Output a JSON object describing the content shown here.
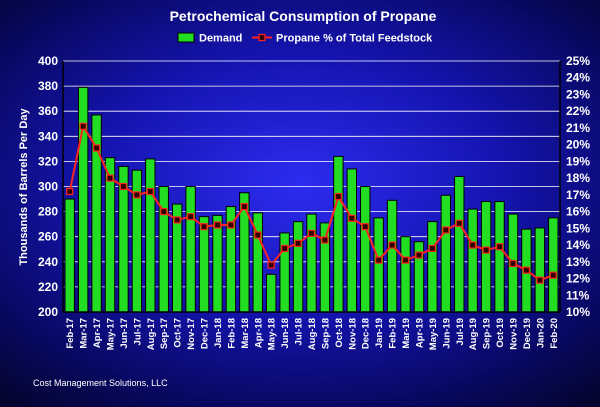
{
  "chart_data": {
    "type": "bar",
    "title": "Petrochemical Consumption of Propane",
    "ylabel": "Thousands of Barrels Per Day",
    "ylim": [
      200,
      400
    ],
    "y2lim": [
      10,
      25
    ],
    "yticks": [
      "200",
      "220",
      "240",
      "260",
      "280",
      "300",
      "320",
      "340",
      "360",
      "380",
      "400"
    ],
    "y2ticks": [
      "10%",
      "11%",
      "12%",
      "13%",
      "14%",
      "15%",
      "16%",
      "17%",
      "18%",
      "19%",
      "20%",
      "21%",
      "22%",
      "23%",
      "24%",
      "25%"
    ],
    "grid": true,
    "legend_position": "top-center",
    "categories": [
      "Feb-17",
      "Mar-17",
      "Apr-17",
      "May-17",
      "Jun-17",
      "Jul-17",
      "Aug-17",
      "Sep-17",
      "Oct-17",
      "Nov-17",
      "Dec-17",
      "Jan-18",
      "Feb-18",
      "Mar-18",
      "Apr-18",
      "May-18",
      "Jun-18",
      "Jul-18",
      "Aug-18",
      "Sep-18",
      "Oct-18",
      "Nov-18",
      "Dec-18",
      "Jan-19",
      "Feb-19",
      "Mar-19",
      "Apr-19",
      "May-19",
      "Jun-19",
      "Jul-19",
      "Aug-19",
      "Sep-19",
      "Oct-19",
      "Nov-19",
      "Dec-19",
      "Jan-20",
      "Feb-20"
    ],
    "series": [
      {
        "name": "Demand",
        "type": "bar",
        "axis": "left",
        "color": "#22dd22",
        "values": [
          290,
          379,
          357,
          323,
          316,
          313,
          322,
          300,
          286,
          300,
          276,
          277,
          284,
          295,
          279,
          230,
          263,
          272,
          278,
          271,
          324,
          314,
          300,
          275,
          289,
          260,
          256,
          272,
          293,
          308,
          282,
          288,
          288,
          278,
          266,
          267,
          275
        ]
      },
      {
        "name": "Propane % of Total Feedstock",
        "type": "line",
        "axis": "right",
        "color": "#ff2222",
        "values": [
          17.2,
          21.1,
          19.8,
          18.0,
          17.5,
          17.0,
          17.2,
          16.0,
          15.5,
          15.7,
          15.1,
          15.2,
          15.2,
          16.3,
          14.6,
          12.8,
          13.8,
          14.1,
          14.7,
          14.3,
          16.9,
          15.6,
          15.1,
          13.1,
          14.0,
          13.1,
          13.4,
          13.8,
          14.9,
          15.3,
          14.0,
          13.7,
          13.9,
          12.9,
          12.5,
          11.9,
          12.2
        ]
      }
    ]
  },
  "footer": "Cost Management Solutions, LLC",
  "colors": {
    "bar_fill": "#22dd22",
    "bar_edge": "#000000",
    "line": "#ff2222",
    "marker_fill": "#330000",
    "grid": "#ffffff",
    "text": "#ffffff"
  }
}
